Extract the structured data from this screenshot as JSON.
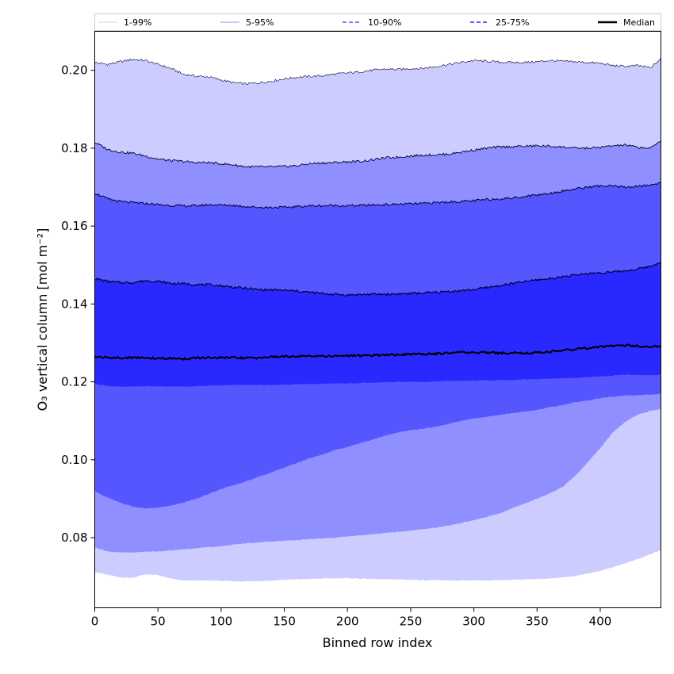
{
  "chart_data": {
    "type": "area",
    "xlabel": "Binned row index",
    "ylabel": "O₃ vertical column [mol m⁻²]",
    "xlim": [
      0,
      448
    ],
    "ylim": [
      0.062,
      0.21
    ],
    "x_ticks": [
      0,
      50,
      100,
      150,
      200,
      250,
      300,
      350,
      400
    ],
    "y_ticks": [
      0.08,
      0.1,
      0.12,
      0.14,
      0.16,
      0.18,
      0.2
    ],
    "y_tick_labels": [
      "0.08",
      "0.10",
      "0.12",
      "0.14",
      "0.16",
      "0.18",
      "0.20"
    ],
    "legend_position": "top",
    "legend": [
      "1-99%",
      "5-95%",
      "10-90%",
      "25-75%",
      "Median"
    ],
    "x": [
      0,
      10,
      20,
      30,
      40,
      50,
      60,
      70,
      80,
      90,
      100,
      110,
      120,
      130,
      140,
      150,
      160,
      170,
      180,
      190,
      200,
      210,
      220,
      230,
      240,
      250,
      260,
      270,
      280,
      290,
      300,
      310,
      320,
      330,
      340,
      350,
      360,
      370,
      380,
      390,
      400,
      410,
      420,
      430,
      440,
      448
    ],
    "bands": [
      {
        "name": "1-99%",
        "color": "#ccccff",
        "lower": [
          0.0712,
          0.0705,
          0.0698,
          0.0697,
          0.0706,
          0.0704,
          0.0695,
          0.069,
          0.069,
          0.069,
          0.0689,
          0.0688,
          0.0688,
          0.0689,
          0.069,
          0.0692,
          0.0693,
          0.0694,
          0.0695,
          0.0696,
          0.0696,
          0.0695,
          0.0694,
          0.0693,
          0.0693,
          0.0692,
          0.0691,
          0.0691,
          0.069,
          0.069,
          0.069,
          0.069,
          0.0691,
          0.0692,
          0.0693,
          0.0694,
          0.0695,
          0.0698,
          0.0702,
          0.0708,
          0.0715,
          0.0724,
          0.0735,
          0.0745,
          0.0758,
          0.0768
        ],
        "upper": [
          0.202,
          0.2015,
          0.2022,
          0.2028,
          0.2025,
          0.2015,
          0.2005,
          0.199,
          0.1985,
          0.1983,
          0.1975,
          0.1968,
          0.1965,
          0.1968,
          0.1972,
          0.1978,
          0.1982,
          0.1984,
          0.1986,
          0.199,
          0.1993,
          0.1996,
          0.2,
          0.2003,
          0.2002,
          0.2004,
          0.2005,
          0.201,
          0.2015,
          0.202,
          0.2025,
          0.2023,
          0.2021,
          0.202,
          0.202,
          0.2022,
          0.2025,
          0.2023,
          0.2022,
          0.202,
          0.2018,
          0.2012,
          0.201,
          0.2012,
          0.2006,
          0.203
        ]
      },
      {
        "name": "5-95%",
        "color": "#8f8fff",
        "lower": [
          0.0775,
          0.0765,
          0.0762,
          0.0762,
          0.0764,
          0.0765,
          0.0767,
          0.077,
          0.0773,
          0.0776,
          0.0778,
          0.0782,
          0.0786,
          0.0788,
          0.079,
          0.0792,
          0.0794,
          0.0796,
          0.0798,
          0.08,
          0.0803,
          0.0806,
          0.0809,
          0.0812,
          0.0815,
          0.0818,
          0.0822,
          0.0826,
          0.0831,
          0.0838,
          0.0845,
          0.0853,
          0.0862,
          0.0875,
          0.0888,
          0.09,
          0.0914,
          0.093,
          0.0958,
          0.0993,
          0.103,
          0.107,
          0.1098,
          0.1116,
          0.1126,
          0.113
        ],
        "upper": [
          0.1815,
          0.1797,
          0.179,
          0.1787,
          0.178,
          0.1772,
          0.1768,
          0.1766,
          0.1763,
          0.1763,
          0.176,
          0.1757,
          0.1752,
          0.1752,
          0.1752,
          0.1753,
          0.1755,
          0.176,
          0.1762,
          0.1763,
          0.1765,
          0.1766,
          0.177,
          0.1775,
          0.1777,
          0.178,
          0.1782,
          0.1783,
          0.1785,
          0.179,
          0.1795,
          0.18,
          0.1803,
          0.1804,
          0.1805,
          0.1806,
          0.1805,
          0.1803,
          0.18,
          0.18,
          0.1802,
          0.1806,
          0.1808,
          0.1802,
          0.18,
          0.182
        ]
      },
      {
        "name": "10-90%",
        "color": "#5656ff",
        "lower": [
          0.092,
          0.0903,
          0.089,
          0.088,
          0.0875,
          0.0877,
          0.0882,
          0.089,
          0.09,
          0.0912,
          0.0925,
          0.0935,
          0.0945,
          0.0957,
          0.0968,
          0.098,
          0.0992,
          0.1004,
          0.1013,
          0.1025,
          0.1033,
          0.1043,
          0.1052,
          0.1062,
          0.107,
          0.1076,
          0.108,
          0.1085,
          0.1092,
          0.11,
          0.1106,
          0.111,
          0.1115,
          0.112,
          0.1124,
          0.1128,
          0.1135,
          0.114,
          0.1148,
          0.1152,
          0.1158,
          0.1162,
          0.1165,
          0.1166,
          0.1167,
          0.117
        ],
        "upper": [
          0.1685,
          0.167,
          0.1663,
          0.166,
          0.1658,
          0.1655,
          0.1653,
          0.1652,
          0.1652,
          0.1655,
          0.1654,
          0.1653,
          0.165,
          0.1648,
          0.1648,
          0.1648,
          0.165,
          0.1652,
          0.1652,
          0.1653,
          0.1652,
          0.1653,
          0.1654,
          0.1655,
          0.1656,
          0.1657,
          0.1658,
          0.166,
          0.1662,
          0.1663,
          0.1665,
          0.1668,
          0.167,
          0.1672,
          0.1676,
          0.168,
          0.1684,
          0.169,
          0.1695,
          0.17,
          0.1703,
          0.1702,
          0.17,
          0.1702,
          0.1705,
          0.1712
        ]
      },
      {
        "name": "25-75%",
        "color": "#2929ff",
        "lower": [
          0.1195,
          0.119,
          0.1187,
          0.1188,
          0.1189,
          0.1188,
          0.1188,
          0.1188,
          0.1189,
          0.119,
          0.1191,
          0.1192,
          0.1192,
          0.1192,
          0.1192,
          0.1193,
          0.1194,
          0.1194,
          0.1195,
          0.1196,
          0.1196,
          0.1197,
          0.1198,
          0.1199,
          0.12,
          0.12,
          0.12,
          0.1201,
          0.1202,
          0.1203,
          0.1203,
          0.1204,
          0.1204,
          0.1205,
          0.1206,
          0.1207,
          0.1208,
          0.1209,
          0.121,
          0.1212,
          0.1214,
          0.1216,
          0.1218,
          0.1218,
          0.1217,
          0.1219
        ],
        "upper": [
          0.1465,
          0.1458,
          0.1455,
          0.1455,
          0.146,
          0.1458,
          0.1453,
          0.1452,
          0.145,
          0.1449,
          0.1447,
          0.1443,
          0.144,
          0.1437,
          0.1436,
          0.1435,
          0.1433,
          0.143,
          0.1427,
          0.1425,
          0.1423,
          0.1424,
          0.1425,
          0.1425,
          0.1426,
          0.1427,
          0.1428,
          0.143,
          0.1432,
          0.1434,
          0.1437,
          0.1442,
          0.1447,
          0.1452,
          0.1457,
          0.1462,
          0.1465,
          0.147,
          0.1474,
          0.1478,
          0.148,
          0.1482,
          0.1485,
          0.149,
          0.1497,
          0.1508
        ]
      }
    ],
    "series": [
      {
        "name": "Median",
        "color": "#000000",
        "values": [
          0.1265,
          0.1262,
          0.1262,
          0.1262,
          0.1262,
          0.126,
          0.126,
          0.1259,
          0.1261,
          0.1262,
          0.1262,
          0.1262,
          0.1261,
          0.1262,
          0.1264,
          0.1265,
          0.1266,
          0.1266,
          0.1266,
          0.1267,
          0.1267,
          0.1267,
          0.1268,
          0.1269,
          0.127,
          0.1271,
          0.1271,
          0.1272,
          0.1274,
          0.1276,
          0.1276,
          0.1275,
          0.1274,
          0.1274,
          0.1274,
          0.1275,
          0.1278,
          0.128,
          0.1284,
          0.1287,
          0.129,
          0.1292,
          0.1294,
          0.1292,
          0.129,
          0.1292
        ]
      }
    ]
  }
}
